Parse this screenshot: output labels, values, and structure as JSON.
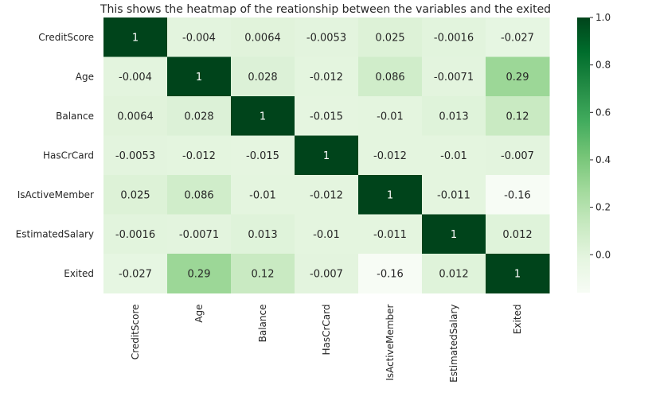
{
  "chart_data": {
    "type": "heatmap",
    "title": "This shows the heatmap of the reationship between the variables and the exited",
    "xlabel": "",
    "ylabel": "",
    "x_categories": [
      "CreditScore",
      "Age",
      "Balance",
      "HasCrCard",
      "IsActiveMember",
      "EstimatedSalary",
      "Exited"
    ],
    "y_categories": [
      "CreditScore",
      "Age",
      "Balance",
      "HasCrCard",
      "IsActiveMember",
      "EstimatedSalary",
      "Exited"
    ],
    "values": [
      [
        1,
        -0.004,
        0.0064,
        -0.0053,
        0.025,
        -0.0016,
        -0.027
      ],
      [
        -0.004,
        1,
        0.028,
        -0.012,
        0.086,
        -0.0071,
        0.29
      ],
      [
        0.0064,
        0.028,
        1,
        -0.015,
        -0.01,
        0.013,
        0.12
      ],
      [
        -0.0053,
        -0.012,
        -0.015,
        1,
        -0.012,
        -0.01,
        -0.007
      ],
      [
        0.025,
        0.086,
        -0.01,
        -0.012,
        1,
        -0.011,
        -0.16
      ],
      [
        -0.0016,
        -0.0071,
        0.013,
        -0.01,
        -0.011,
        1,
        0.012
      ],
      [
        -0.027,
        0.29,
        0.12,
        -0.007,
        -0.16,
        0.012,
        1
      ]
    ],
    "cell_labels": [
      [
        "1",
        "-0.004",
        "0.0064",
        "-0.0053",
        "0.025",
        "-0.0016",
        "-0.027"
      ],
      [
        "-0.004",
        "1",
        "0.028",
        "-0.012",
        "0.086",
        "-0.0071",
        "0.29"
      ],
      [
        "0.0064",
        "0.028",
        "1",
        "-0.015",
        "-0.01",
        "0.013",
        "0.12"
      ],
      [
        "-0.0053",
        "-0.012",
        "-0.015",
        "1",
        "-0.012",
        "-0.01",
        "-0.007"
      ],
      [
        "0.025",
        "0.086",
        "-0.01",
        "-0.012",
        "1",
        "-0.011",
        "-0.16"
      ],
      [
        "-0.0016",
        "-0.0071",
        "0.013",
        "-0.01",
        "-0.011",
        "1",
        "0.012"
      ],
      [
        "-0.027",
        "0.29",
        "0.12",
        "-0.007",
        "-0.16",
        "0.012",
        "1"
      ]
    ],
    "colormap": "Greens",
    "vmin": -0.16,
    "vmax": 1.0,
    "colorbar": {
      "ticks": [
        0.0,
        0.2,
        0.4,
        0.6,
        0.8,
        1.0
      ],
      "tick_labels": [
        "0.0",
        "0.2",
        "0.4",
        "0.6",
        "0.8",
        "1.0"
      ],
      "placement": "right"
    },
    "colors": {
      "low": "#f7fcf5",
      "high": "#00441b",
      "text_dark": "#262626",
      "text_light": "#ffffff"
    }
  }
}
